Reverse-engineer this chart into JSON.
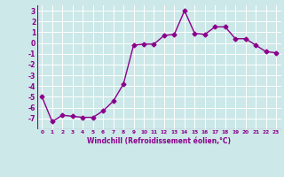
{
  "x": [
    0,
    1,
    2,
    3,
    4,
    5,
    6,
    7,
    8,
    9,
    10,
    11,
    12,
    13,
    14,
    15,
    16,
    17,
    18,
    19,
    20,
    21,
    22,
    23
  ],
  "y": [
    -5.0,
    -7.3,
    -6.7,
    -6.8,
    -6.9,
    -6.9,
    -6.3,
    -5.4,
    -3.8,
    -0.2,
    -0.1,
    -0.1,
    0.7,
    0.8,
    3.0,
    0.9,
    0.8,
    1.5,
    1.5,
    0.4,
    0.4,
    -0.2,
    -0.8,
    -0.9
  ],
  "xlabel": "Windchill (Refroidissement éolien,°C)",
  "xlim": [
    -0.5,
    23.5
  ],
  "ylim": [
    -8,
    3.5
  ],
  "yticks": [
    -7,
    -6,
    -5,
    -4,
    -3,
    -2,
    -1,
    0,
    1,
    2,
    3
  ],
  "xticks": [
    0,
    1,
    2,
    3,
    4,
    5,
    6,
    7,
    8,
    9,
    10,
    11,
    12,
    13,
    14,
    15,
    16,
    17,
    18,
    19,
    20,
    21,
    22,
    23
  ],
  "line_color": "#8B008B",
  "marker": "D",
  "marker_size": 2.5,
  "bg_color": "#cce8e8",
  "grid_color": "#ffffff",
  "tick_label_color": "#8B008B",
  "xlabel_color": "#8B008B",
  "line_width": 1.0
}
